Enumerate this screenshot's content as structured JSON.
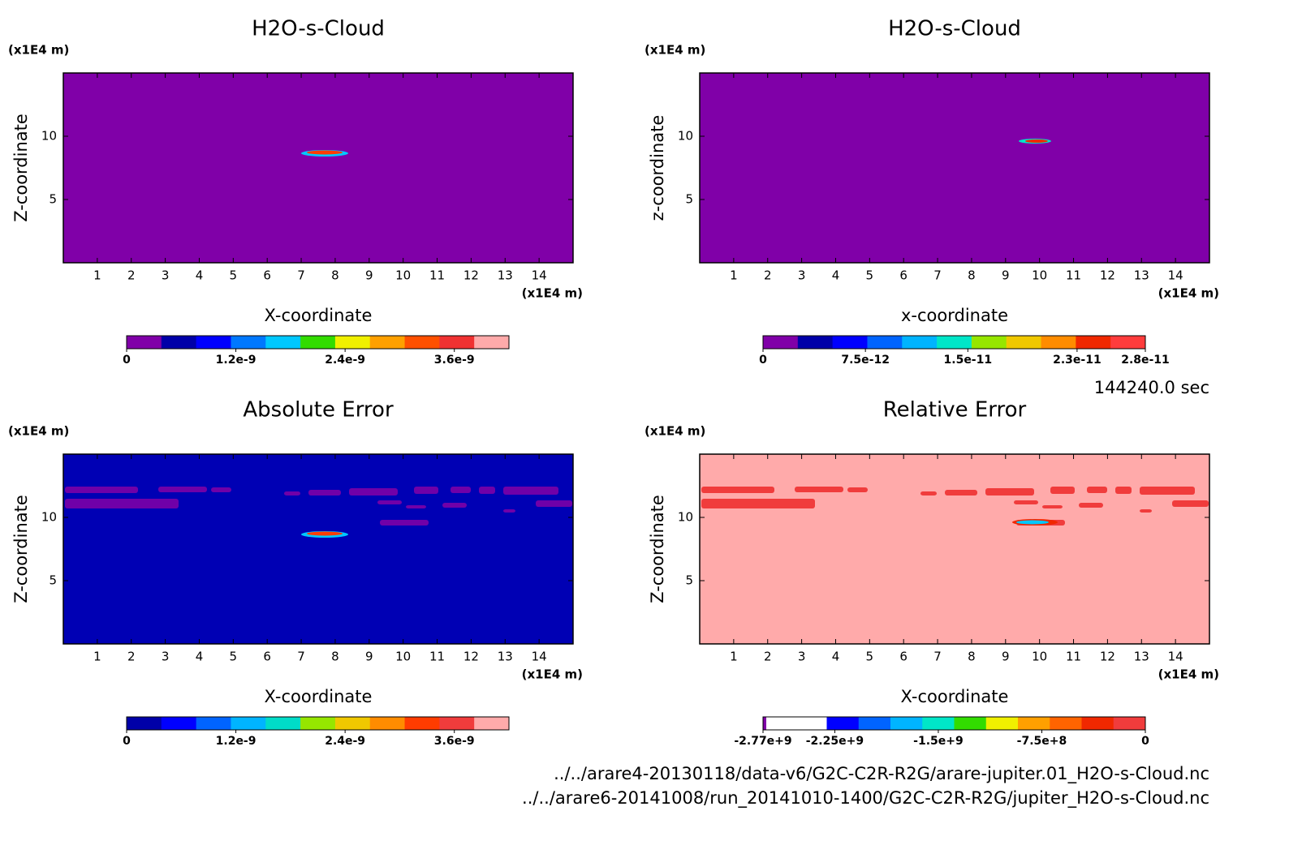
{
  "chart_data": [
    {
      "type": "contour",
      "title": "H2O-s-Cloud",
      "x_label": "X-coordinate",
      "y_label": "Z-coordinate",
      "x_unit": "(x1E4 m)",
      "y_unit": "(x1E4 m)",
      "xlim": [
        0,
        15
      ],
      "ylim": [
        0,
        15
      ],
      "xticks": [
        1,
        2,
        3,
        4,
        5,
        6,
        7,
        8,
        9,
        10,
        11,
        12,
        13,
        14
      ],
      "yticks": [
        5,
        10
      ],
      "background": "#8000a8",
      "colorbar": {
        "clim": [
          0,
          4.2e-09
        ],
        "colors": [
          "#8000a8",
          "#0000a8",
          "#0000ff",
          "#0078ff",
          "#00c8ff",
          "#32dc00",
          "#f0f000",
          "#ffa000",
          "#ff5000",
          "#f03232",
          "#ffaaaa"
        ],
        "ticks": [
          0,
          {
            "value": 1.2e-09,
            "label": "1.2e-9"
          },
          {
            "value": 2.4e-09,
            "label": "2.4e-9"
          },
          {
            "value": 3.6e-09,
            "label": "3.6e-9"
          }
        ]
      }
    },
    {
      "type": "contour",
      "title": "H2O-s-Cloud",
      "x_label": "x-coordinate",
      "y_label": "z-coordinate",
      "x_unit": "(x1E4 m)",
      "y_unit": "(x1E4 m)",
      "xlim": [
        0,
        15
      ],
      "ylim": [
        0,
        15
      ],
      "xticks": [
        1,
        2,
        3,
        4,
        5,
        6,
        7,
        8,
        9,
        10,
        11,
        12,
        13,
        14
      ],
      "yticks": [
        5,
        10
      ],
      "background": "#8000a8",
      "colorbar": {
        "clim": [
          0,
          2.8e-11
        ],
        "colors": [
          "#8000a8",
          "#0000a8",
          "#0000ff",
          "#0064ff",
          "#00b4ff",
          "#00e6c8",
          "#96e600",
          "#f0c800",
          "#ff8c00",
          "#f02800",
          "#ff3c3c"
        ],
        "ticks": [
          0,
          {
            "value": 7.5e-12,
            "label": "7.5e-12"
          },
          {
            "value": 1.5e-11,
            "label": "1.5e-11"
          },
          {
            "value": 2.3e-11,
            "label": "2.3e-11"
          },
          {
            "value": 2.8e-11,
            "label": "2.8e-11"
          }
        ]
      }
    },
    {
      "type": "contour",
      "title": "Absolute Error",
      "x_label": "X-coordinate",
      "y_label": "Z-coordinate",
      "x_unit": "(x1E4 m)",
      "y_unit": "(x1E4 m)",
      "xlim": [
        0,
        15
      ],
      "ylim": [
        0,
        15
      ],
      "xticks": [
        1,
        2,
        3,
        4,
        5,
        6,
        7,
        8,
        9,
        10,
        11,
        12,
        13,
        14
      ],
      "yticks": [
        5,
        10
      ],
      "background": "#0000b4",
      "colorbar": {
        "clim": [
          0,
          4.2e-09
        ],
        "colors": [
          "#0000a8",
          "#0000ff",
          "#0064ff",
          "#00b4ff",
          "#00dcc8",
          "#96e600",
          "#f0c800",
          "#ff8c00",
          "#ff3c00",
          "#f03c3c",
          "#ffaaaa"
        ],
        "ticks": [
          0,
          {
            "value": 1.2e-09,
            "label": "1.2e-9"
          },
          {
            "value": 2.4e-09,
            "label": "2.4e-9"
          },
          {
            "value": 3.6e-09,
            "label": "3.6e-9"
          }
        ]
      }
    },
    {
      "type": "contour",
      "title": "Relative Error",
      "x_label": "X-coordinate",
      "y_label": "Z-coordinate",
      "x_unit": "(x1E4 m)",
      "y_unit": "(x1E4 m)",
      "xlim": [
        0,
        15
      ],
      "ylim": [
        0,
        15
      ],
      "xticks": [
        1,
        2,
        3,
        4,
        5,
        6,
        7,
        8,
        9,
        10,
        11,
        12,
        13,
        14
      ],
      "yticks": [
        5,
        10
      ],
      "background": "#ffaaaa",
      "colorbar": {
        "clim": [
          -2770000000.0,
          0
        ],
        "colors": [
          "#ffffff",
          "#ffffff",
          "#0000ff",
          "#0064ff",
          "#00b4ff",
          "#00e6c8",
          "#32dc00",
          "#f0f000",
          "#ffa000",
          "#ff6400",
          "#f02800",
          "#f03c3c"
        ],
        "ticks": [
          {
            "value": -2770000000.0,
            "label": "-2.77e+9"
          },
          {
            "value": -2250000000.0,
            "label": "-2.25e+9"
          },
          {
            "value": -1500000000.0,
            "label": "-1.5e+9"
          },
          {
            "value": -750000000.0,
            "label": "-7.5e+8"
          },
          0
        ]
      }
    }
  ],
  "time_label": "144240.0 sec",
  "files": [
    "../../arare4-20130118/data-v6/G2C-C2R-R2G/arare-jupiter.01_H2O-s-Cloud.nc",
    "../../arare6-20141008/run_20141010-1400/G2C-C2R-R2G/jupiter_H2O-s-Cloud.nc"
  ]
}
